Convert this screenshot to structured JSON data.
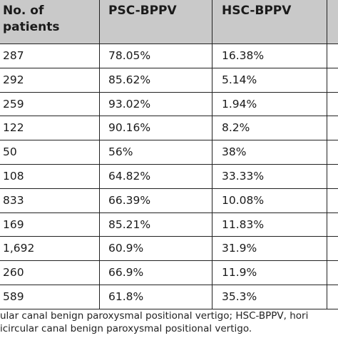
{
  "table": {
    "headers": [
      "No. of\npatients",
      "PSC-BPPV",
      "HSC-BPPV"
    ],
    "rows": [
      [
        "287",
        "78.05%",
        "16.38%"
      ],
      [
        "292",
        "85.62%",
        "5.14%"
      ],
      [
        "259",
        "93.02%",
        "1.94%"
      ],
      [
        "122",
        "90.16%",
        "8.2%"
      ],
      [
        "50",
        "56%",
        "38%"
      ],
      [
        "108",
        "64.82%",
        "33.33%"
      ],
      [
        "833",
        "66.39%",
        "10.08%"
      ],
      [
        "169",
        "85.21%",
        "11.83%"
      ],
      [
        "1,692",
        "60.9%",
        "31.9%"
      ],
      [
        "260",
        "66.9%",
        "11.9%"
      ],
      [
        "589",
        "61.8%",
        "35.3%"
      ]
    ]
  },
  "footnote": {
    "line1": "ular canal benign paroxysmal positional vertigo; HSC-BPPV, hori",
    "line2": "icircular canal benign paroxysmal positional vertigo."
  }
}
